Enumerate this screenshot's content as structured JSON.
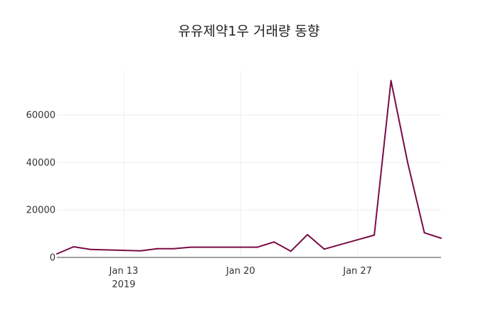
{
  "chart_data": {
    "type": "line",
    "title": "유유제약1우 거래량 동향",
    "xlabel": "",
    "ylabel": "",
    "x": [
      "2019-01-09",
      "2019-01-10",
      "2019-01-11",
      "2019-01-14",
      "2019-01-15",
      "2019-01-16",
      "2019-01-17",
      "2019-01-18",
      "2019-01-21",
      "2019-01-22",
      "2019-01-23",
      "2019-01-24",
      "2019-01-25",
      "2019-01-28",
      "2019-01-29",
      "2019-01-30",
      "2019-01-31",
      "2019-02-01"
    ],
    "series": [
      {
        "values": [
          1500,
          4500,
          3400,
          2800,
          3700,
          3700,
          4300,
          4300,
          4300,
          6500,
          2600,
          9600,
          3500,
          9400,
          74500,
          40000,
          10400,
          8100
        ],
        "color": "#7b0b45"
      }
    ],
    "xlim": [
      "2019-01-09",
      "2019-02-01"
    ],
    "ylim": [
      0,
      78500
    ],
    "x_ticks": [
      {
        "date": "2019-01-13",
        "label": "Jan 13",
        "sublabel": "2019"
      },
      {
        "date": "2019-01-20",
        "label": "Jan 20",
        "sublabel": ""
      },
      {
        "date": "2019-01-27",
        "label": "Jan 27",
        "sublabel": ""
      }
    ],
    "y_ticks": [
      {
        "value": 0,
        "label": "0"
      },
      {
        "value": 20000,
        "label": "20000"
      },
      {
        "value": 40000,
        "label": "40000"
      },
      {
        "value": 60000,
        "label": "60000"
      }
    ],
    "grid": true,
    "legend": "none"
  }
}
